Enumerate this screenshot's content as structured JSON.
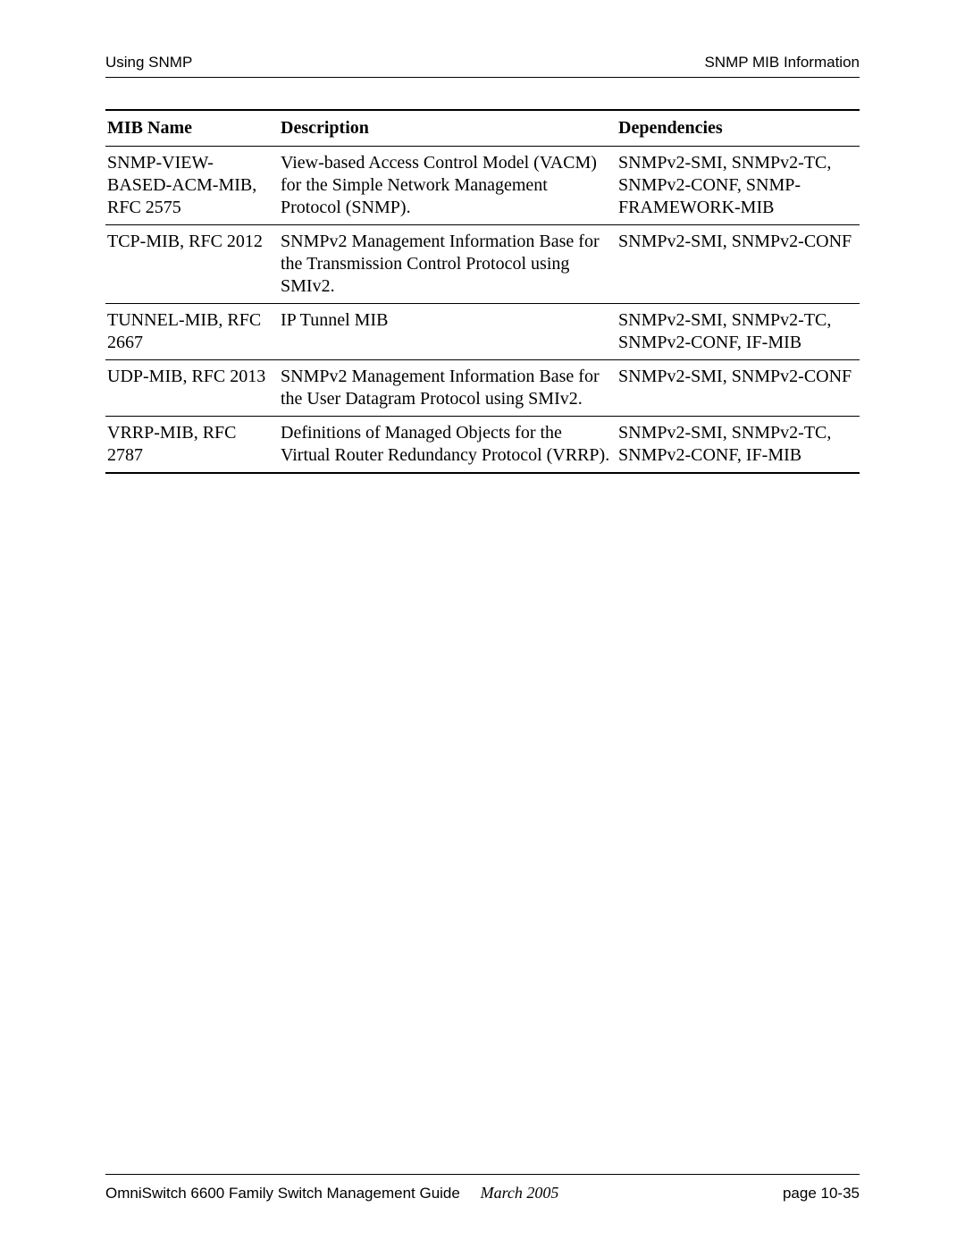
{
  "header": {
    "left": "Using SNMP",
    "right": "SNMP MIB Information"
  },
  "table": {
    "columns": [
      "MIB Name",
      "Description",
      "Dependencies"
    ],
    "rows": [
      {
        "name": "SNMP-VIEW-BASED-ACM-MIB, RFC 2575",
        "desc": "View-based Access Control Model (VACM) for the Simple Network Management Protocol (SNMP).",
        "dep": "SNMPv2-SMI, SNMPv2-TC, SNMPv2-CONF, SNMP-FRAMEWORK-MIB"
      },
      {
        "name": "TCP-MIB, RFC 2012",
        "desc": "SNMPv2 Management Information Base for the Transmission Control Protocol using SMIv2.",
        "dep": "SNMPv2-SMI, SNMPv2-CONF"
      },
      {
        "name": "TUNNEL-MIB, RFC 2667",
        "desc": "IP Tunnel MIB",
        "dep": "SNMPv2-SMI, SNMPv2-TC, SNMPv2-CONF, IF-MIB"
      },
      {
        "name": "UDP-MIB, RFC 2013",
        "desc": "SNMPv2 Management Information Base for the User Datagram Protocol using SMIv2.",
        "dep": "SNMPv2-SMI, SNMPv2-CONF"
      },
      {
        "name": "VRRP-MIB, RFC 2787",
        "desc": "Definitions of Managed Objects for the Virtual Router Redundancy Protocol (VRRP).",
        "dep": "SNMPv2-SMI, SNMPv2-TC, SNMPv2-CONF, IF-MIB"
      }
    ]
  },
  "footer": {
    "title": "OmniSwitch 6600 Family Switch Management Guide",
    "date": "March 2005",
    "page": "page 10-35"
  }
}
